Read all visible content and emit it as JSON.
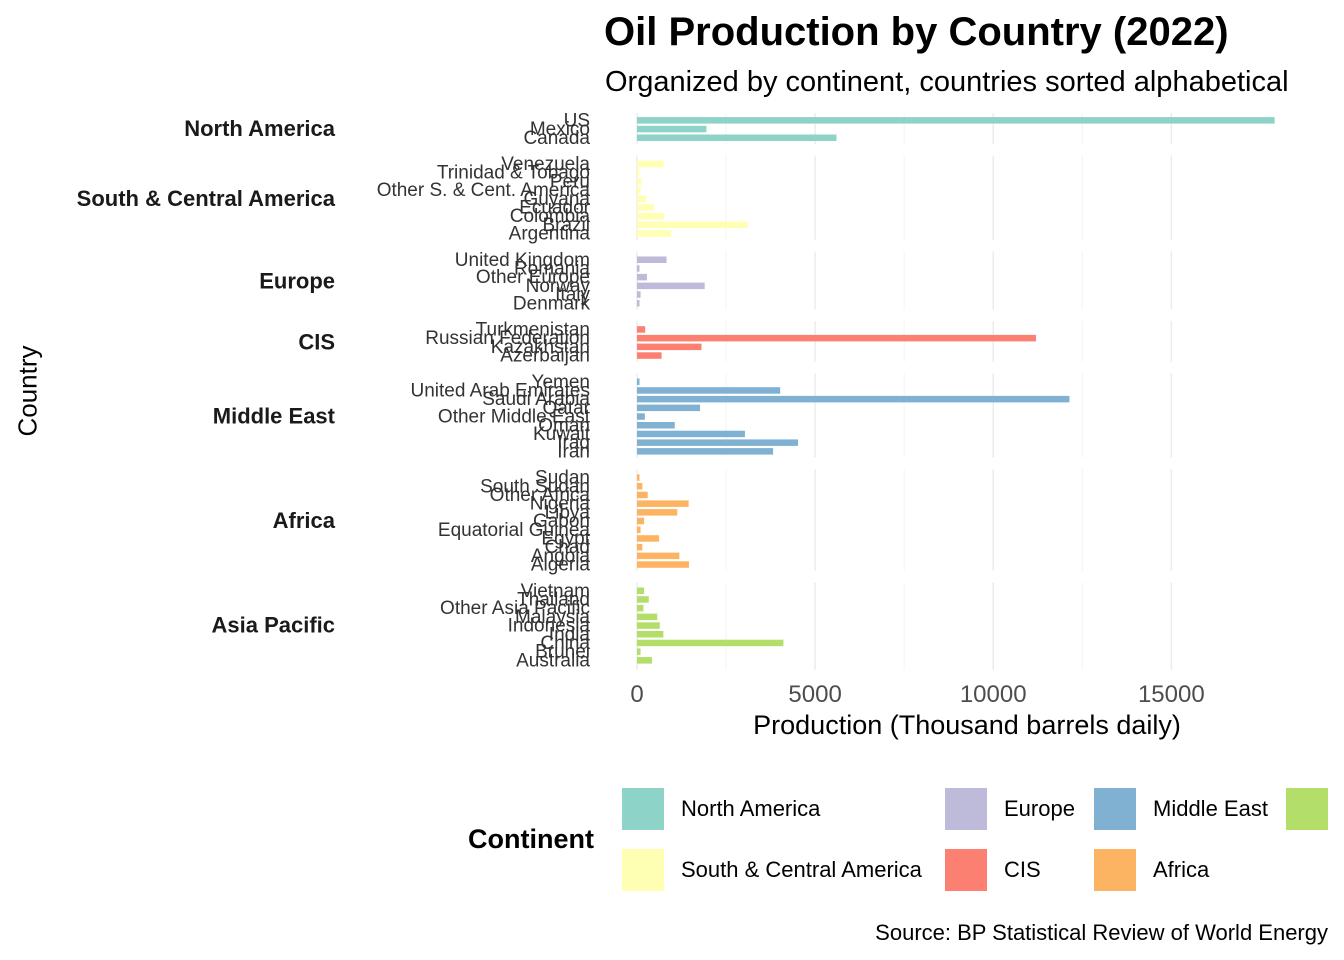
{
  "title": "Oil Production by Country (2022)",
  "subtitle": "Organized by continent, countries sorted alphabetical",
  "caption": "Source: BP Statistical Review of World Energy",
  "chart_data": {
    "type": "bar",
    "orientation": "horizontal",
    "title": "Oil Production by Country (2022)",
    "subtitle": "Organized by continent, countries sorted alphabetical",
    "xlabel": "Production (Thousand barrels daily)",
    "ylabel": "Country",
    "xlim": [
      0,
      18500
    ],
    "x_ticks": [
      0,
      5000,
      10000,
      15000
    ],
    "x_tick_labels": [
      "0",
      "5000",
      "10000",
      "15000"
    ],
    "grid": "vertical major gridlines",
    "legend_title": "Continent",
    "legend_position": "bottom",
    "caption": "Source: BP Statistical Review of World Energy",
    "groups": [
      {
        "name": "North America",
        "color": "#8DD3C7",
        "countries": [
          {
            "name": "US",
            "value": 17900
          },
          {
            "name": "Mexico",
            "value": 1950
          },
          {
            "name": "Canada",
            "value": 5600
          }
        ]
      },
      {
        "name": "South & Central America",
        "color": "#FFFFB3",
        "countries": [
          {
            "name": "Venezuela",
            "value": 750
          },
          {
            "name": "Trinidad & Tobago",
            "value": 70
          },
          {
            "name": "Peru",
            "value": 130
          },
          {
            "name": "Other S. & Cent. America",
            "value": 100
          },
          {
            "name": "Guyana",
            "value": 270
          },
          {
            "name": "Ecuador",
            "value": 480
          },
          {
            "name": "Colombia",
            "value": 760
          },
          {
            "name": "Brazil",
            "value": 3110
          },
          {
            "name": "Argentina",
            "value": 960
          }
        ]
      },
      {
        "name": "Europe",
        "color": "#BEBADA",
        "countries": [
          {
            "name": "United Kingdom",
            "value": 830
          },
          {
            "name": "Romania",
            "value": 70
          },
          {
            "name": "Other Europe",
            "value": 280
          },
          {
            "name": "Norway",
            "value": 1900
          },
          {
            "name": "Italy",
            "value": 100
          },
          {
            "name": "Denmark",
            "value": 70
          }
        ]
      },
      {
        "name": "CIS",
        "color": "#FB8072",
        "countries": [
          {
            "name": "Turkmenistan",
            "value": 230
          },
          {
            "name": "Russian Federation",
            "value": 11200
          },
          {
            "name": "Kazakhstan",
            "value": 1810
          },
          {
            "name": "Azerbaijan",
            "value": 690
          }
        ]
      },
      {
        "name": "Middle East",
        "color": "#80B1D3",
        "countries": [
          {
            "name": "Yemen",
            "value": 70
          },
          {
            "name": "United Arab Emirates",
            "value": 4020
          },
          {
            "name": "Saudi Arabia",
            "value": 12140
          },
          {
            "name": "Qatar",
            "value": 1770
          },
          {
            "name": "Other Middle East",
            "value": 220
          },
          {
            "name": "Oman",
            "value": 1060
          },
          {
            "name": "Kuwait",
            "value": 3030
          },
          {
            "name": "Iraq",
            "value": 4520
          },
          {
            "name": "Iran",
            "value": 3820
          }
        ]
      },
      {
        "name": "Africa",
        "color": "#FDB462",
        "countries": [
          {
            "name": "Sudan",
            "value": 70
          },
          {
            "name": "South Sudan",
            "value": 150
          },
          {
            "name": "Other Africa",
            "value": 300
          },
          {
            "name": "Nigeria",
            "value": 1450
          },
          {
            "name": "Libya",
            "value": 1130
          },
          {
            "name": "Gabon",
            "value": 200
          },
          {
            "name": "Equatorial Guinea",
            "value": 100
          },
          {
            "name": "Egypt",
            "value": 620
          },
          {
            "name": "Chad",
            "value": 150
          },
          {
            "name": "Angola",
            "value": 1190
          },
          {
            "name": "Algeria",
            "value": 1460
          }
        ]
      },
      {
        "name": "Asia Pacific",
        "color": "#B3DE69",
        "countries": [
          {
            "name": "Vietnam",
            "value": 200
          },
          {
            "name": "Thailand",
            "value": 330
          },
          {
            "name": "Other Asia Pacific",
            "value": 180
          },
          {
            "name": "Malaysia",
            "value": 570
          },
          {
            "name": "Indonesia",
            "value": 640
          },
          {
            "name": "India",
            "value": 740
          },
          {
            "name": "China",
            "value": 4110
          },
          {
            "name": "Brunei",
            "value": 100
          },
          {
            "name": "Australia",
            "value": 420
          }
        ]
      }
    ],
    "legend": [
      {
        "name": "North America",
        "color": "#8DD3C7"
      },
      {
        "name": "South & Central America",
        "color": "#FFFFB3"
      },
      {
        "name": "Europe",
        "color": "#BEBADA"
      },
      {
        "name": "CIS",
        "color": "#FB8072"
      },
      {
        "name": "Middle East",
        "color": "#80B1D3"
      },
      {
        "name": "Africa",
        "color": "#FDB462"
      },
      {
        "name": "",
        "color": "#B3DE69"
      }
    ]
  }
}
